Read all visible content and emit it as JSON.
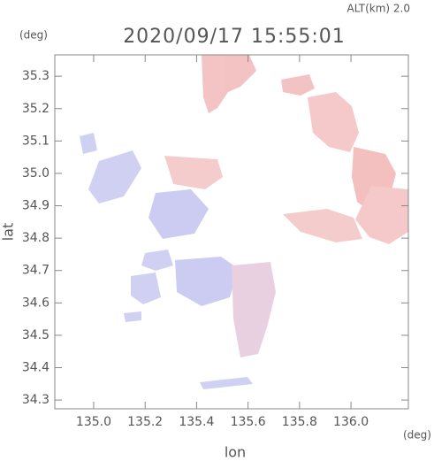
{
  "chart_data": {
    "type": "map",
    "title": "2020/09/17 15:55:01",
    "annotation": "ALT(km) 2.0",
    "xlabel": "lon",
    "ylabel": "lat",
    "xunit": "(deg)",
    "yunit": "(deg)",
    "xlim": [
      134.849,
      136.223
    ],
    "ylim": [
      34.273,
      35.366
    ],
    "xticks": [
      {
        "value": 135,
        "label": "135.0"
      },
      135.2,
      135.4,
      135.6,
      135.8,
      {
        "value": 136,
        "label": "136.0"
      }
    ],
    "yticks": [
      34.3,
      34.4,
      34.5,
      34.6,
      34.7,
      34.8,
      34.9,
      {
        "value": 35,
        "label": "35.0"
      },
      35.1,
      35.2,
      35.3
    ]
  }
}
